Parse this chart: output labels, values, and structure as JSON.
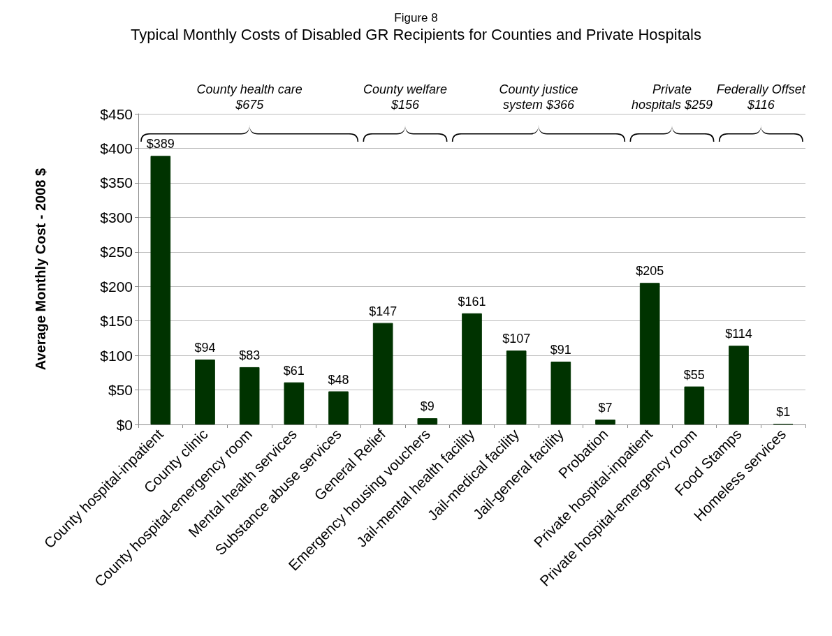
{
  "chart_data": {
    "type": "bar",
    "title": "Figure 8",
    "subtitle": "Typical Monthly Costs of Disabled GR Recipients for Counties and Private Hospitals",
    "ylabel": "Average Monthly Cost - 2008 $",
    "categories": [
      "County hospital-inpatient",
      "County clinic",
      "County hospital-emergency room",
      "Mental health services",
      "Substance abuse services",
      "General Relief",
      "Emergency housing vouchers",
      "Jail-mental health facility",
      "Jail-medical facility",
      "Jail-general facility",
      "Probation",
      "Private hospital-inpatient",
      "Private hospital-emergency room",
      "Food Stamps",
      "Homeless services"
    ],
    "values": [
      389,
      94,
      83,
      61,
      48,
      147,
      9,
      161,
      107,
      91,
      7,
      205,
      55,
      114,
      1
    ],
    "value_labels": [
      "$389",
      "$94",
      "$83",
      "$61",
      "$48",
      "$147",
      "$9",
      "$161",
      "$107",
      "$91",
      "$7",
      "$205",
      "$55",
      "$114",
      "$1"
    ],
    "color": "#003300",
    "ylim": [
      0,
      450
    ],
    "yticks": [
      {
        "value": 0,
        "label": "$0"
      },
      {
        "value": 50,
        "label": "$50"
      },
      {
        "value": 100,
        "label": "$100"
      },
      {
        "value": 150,
        "label": "$150"
      },
      {
        "value": 200,
        "label": "$200"
      },
      {
        "value": 250,
        "label": "$250"
      },
      {
        "value": 300,
        "label": "$300"
      },
      {
        "value": 350,
        "label": "$350"
      },
      {
        "value": 400,
        "label": "$400"
      },
      {
        "value": 450,
        "label": "$450"
      }
    ],
    "grid": "y",
    "annotations": [
      "County health care $675",
      "County welfare $156",
      "County justice system $366",
      "Private hospitals $259",
      "Federally Offset $116"
    ]
  }
}
